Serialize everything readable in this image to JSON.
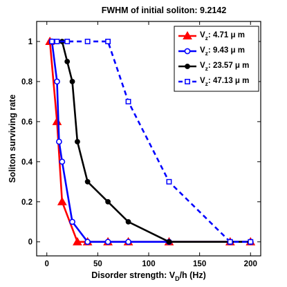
{
  "chart_data": {
    "type": "line",
    "title": "FWHM of initial soliton: 9.2142",
    "xlabel": {
      "pre": "Disorder strength: V",
      "sub": "D",
      "post": "/h (Hz)"
    },
    "ylabel": "Soliton surviving rate",
    "xlim": [
      -10,
      210
    ],
    "ylim": [
      -0.07,
      1.1
    ],
    "xticks": [
      0,
      50,
      100,
      150,
      200
    ],
    "yticks": [
      0,
      0.2,
      0.4,
      0.6,
      0.8,
      1
    ],
    "xtick_labels": [
      "0",
      "50",
      "100",
      "150",
      "200"
    ],
    "ytick_labels": [
      "0",
      "0.2",
      "0.4",
      "0.6",
      "0.8",
      "1"
    ],
    "grid": false,
    "legend_position": "top-right",
    "series": [
      {
        "name_pre": "V",
        "name_sub": "z",
        "name_post": ": 4.71 μ m",
        "color": "#ff0000",
        "marker": "triangle",
        "line": "solid",
        "x": [
          3,
          10,
          15,
          30,
          40,
          60,
          80,
          120,
          180,
          200
        ],
        "y": [
          1,
          0.6,
          0.2,
          0,
          0,
          0,
          0,
          0,
          0,
          0
        ]
      },
      {
        "name_pre": "V",
        "name_sub": "z",
        "name_post": ": 9.43 μ m",
        "color": "#0000ff",
        "marker": "circle",
        "line": "solid",
        "x": [
          5,
          10,
          12,
          15,
          25,
          40,
          60,
          80,
          120,
          180,
          200
        ],
        "y": [
          1,
          0.8,
          0.5,
          0.4,
          0.1,
          0,
          0,
          0,
          0,
          0,
          0
        ]
      },
      {
        "name_pre": "V",
        "name_sub": "z",
        "name_post": ": 23.57 μ m",
        "color": "#000000",
        "marker": "dot",
        "line": "solid",
        "x": [
          10,
          15,
          20,
          25,
          30,
          40,
          60,
          80,
          120,
          180,
          200
        ],
        "y": [
          1,
          1,
          0.9,
          0.8,
          0.5,
          0.3,
          0.2,
          0.1,
          0,
          0,
          0
        ]
      },
      {
        "name_pre": "V",
        "name_sub": "z",
        "name_post": ": 47.13 μ m",
        "color": "#0000ff",
        "marker": "square",
        "line": "dashed",
        "x": [
          5,
          10,
          20,
          40,
          60,
          80,
          120,
          180,
          200
        ],
        "y": [
          1,
          1,
          1,
          1,
          1,
          0.7,
          0.3,
          0,
          0
        ]
      }
    ]
  }
}
